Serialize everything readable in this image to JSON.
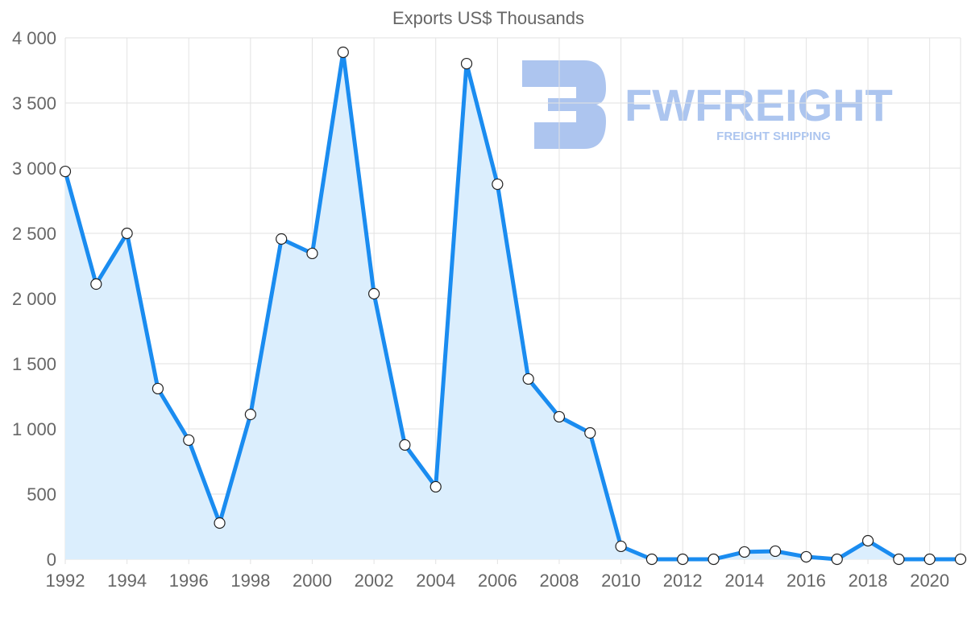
{
  "chart_data": {
    "type": "area",
    "title": "Exports US$ Thousands",
    "xlabel": "",
    "ylabel": "",
    "x": [
      1992,
      1993,
      1994,
      1995,
      1996,
      1997,
      1998,
      1999,
      2000,
      2001,
      2002,
      2003,
      2004,
      2005,
      2006,
      2007,
      2008,
      2009,
      2010,
      2011,
      2012,
      2013,
      2014,
      2015,
      2016,
      2017,
      2018,
      2019,
      2020,
      2021
    ],
    "series": [
      {
        "name": "Exports US$ Thousands",
        "values": [
          2975,
          2111,
          2500,
          1309,
          914,
          278,
          1111,
          2457,
          2346,
          3889,
          2037,
          877,
          556,
          3802,
          2877,
          1383,
          1093,
          969,
          99,
          0,
          0,
          0,
          56,
          62,
          19,
          0,
          142,
          0,
          0,
          0
        ]
      }
    ],
    "ylim": [
      0,
      4000
    ],
    "xlim": [
      1992,
      2021
    ],
    "y_ticks": [
      0,
      500,
      1000,
      1500,
      2000,
      2500,
      3000,
      3500,
      4000
    ],
    "y_tick_labels": [
      "0",
      "500",
      "1 000",
      "1 500",
      "2 000",
      "2 500",
      "3 000",
      "3 500",
      "4 000"
    ],
    "x_ticks": [
      1992,
      1994,
      1996,
      1998,
      2000,
      2002,
      2004,
      2006,
      2008,
      2010,
      2012,
      2014,
      2016,
      2018,
      2020
    ],
    "x_tick_labels": [
      "1992",
      "1994",
      "1996",
      "1998",
      "2000",
      "2002",
      "2004",
      "2006",
      "2008",
      "2010",
      "2012",
      "2014",
      "2016",
      "2018",
      "2020"
    ],
    "grid": true,
    "legend": "none",
    "colors": {
      "line": "#1a8cf0",
      "fill": "#dbeefd",
      "grid": "#e2e2e2",
      "text": "#666666"
    }
  },
  "watermark": {
    "brand": "FWFREIGHT",
    "tagline": "FREIGHT SHIPPING"
  }
}
